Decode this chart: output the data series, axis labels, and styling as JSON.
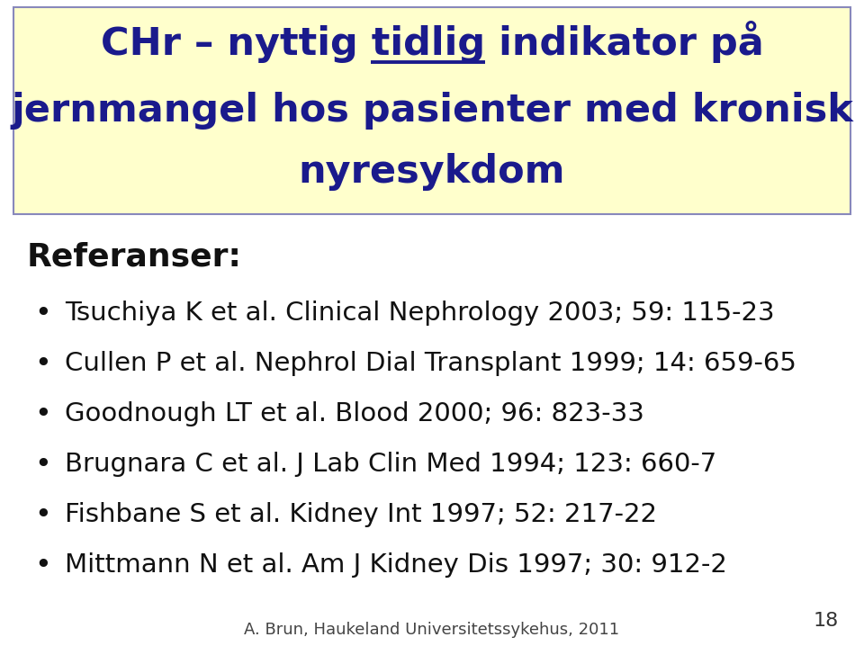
{
  "title_line1": "CHr – nyttig tidlig indikator på",
  "title_line2": "jernmangel hos pasienter med kronisk",
  "title_line3": "nyresykdom",
  "title_color": "#1a1a8c",
  "title_box_bg": "#ffffcc",
  "title_box_border": "#8888bb",
  "references_header": "Referanser:",
  "bullet_items": [
    "Tsuchiya K et al. Clinical Nephrology 2003; 59: 115-23",
    "Cullen P et al. Nephrol Dial Transplant 1999; 14: 659-65",
    "Goodnough LT et al. Blood 2000; 96: 823-33",
    "Brugnara C et al. J Lab Clin Med 1994; 123: 660-7",
    "Fishbane S et al. Kidney Int 1997; 52: 217-22",
    "Mittmann N et al. Am J Kidney Dis 1997; 30: 912-2"
  ],
  "text_color": "#111111",
  "footer_text": "A. Brun, Haukeland Universitetssykehus, 2011",
  "page_number": "18",
  "bg_color": "#ffffff",
  "title_fontsize": 31,
  "ref_header_fontsize": 26,
  "bullet_fontsize": 21,
  "footer_fontsize": 13,
  "page_num_fontsize": 16
}
